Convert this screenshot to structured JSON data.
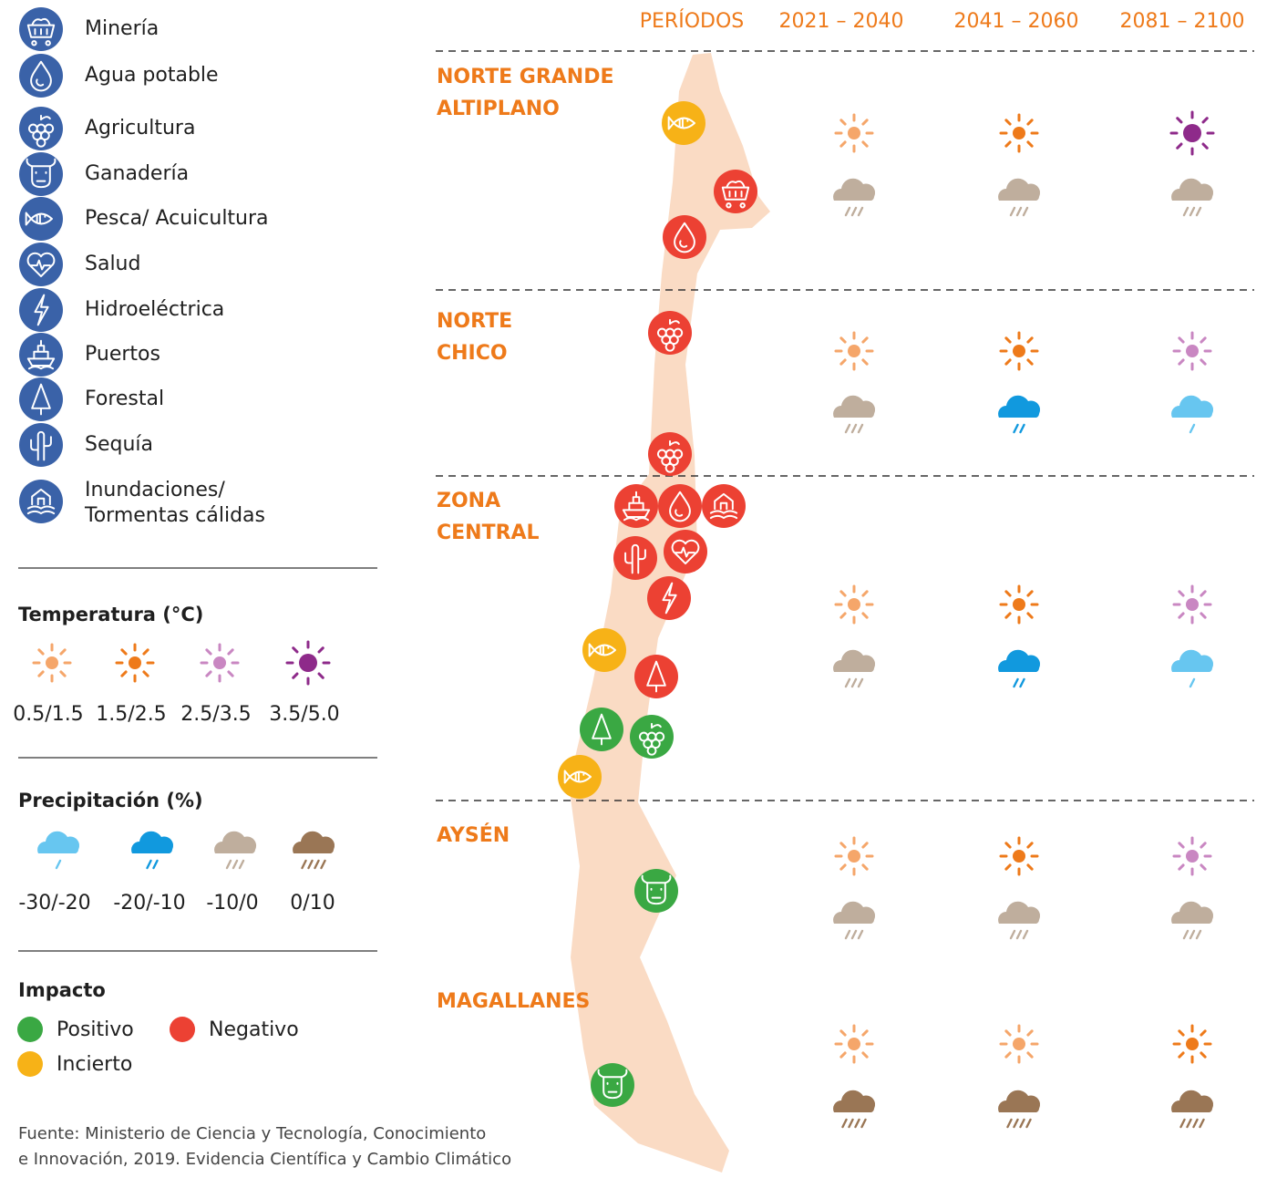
{
  "legend": {
    "sectors": [
      "Minería",
      "Agua potable",
      "Agricultura",
      "Ganadería",
      "Pesca/ Acuicultura",
      "Salud",
      "Hidroeléctrica",
      "Puertos",
      "Forestal",
      "Sequía",
      [
        "Inundaciones/",
        "Tormentas cálidas"
      ]
    ],
    "sector_color": "#3a62a8",
    "temperature": {
      "title": "Temperatura (°C)",
      "levels": [
        "0.5/1.5",
        "1.5/2.5",
        "2.5/3.5",
        "3.5/5.0"
      ],
      "colors": [
        "#f5a66a",
        "#ee7a1a",
        "#c987c2",
        "#8e2a8a"
      ]
    },
    "precipitation": {
      "title": "Precipitación (%)",
      "levels": [
        "-30/-20",
        "-20/-10",
        "-10/0",
        "0/10"
      ],
      "colors": [
        "#67c6f0",
        "#1199de",
        "#bfae9d",
        "#9a7655"
      ]
    },
    "impact": {
      "title": "Impacto",
      "items": [
        "Positivo",
        "Negativo",
        "Incierto"
      ],
      "colors": [
        "#3aa843",
        "#ec4133",
        "#f7b217"
      ]
    }
  },
  "table": {
    "header": "PERÍODOS",
    "periods": [
      "2021 – 2040",
      "2041 – 2060",
      "2081 – 2100"
    ],
    "regions": [
      {
        "name": [
          "NORTE GRANDE",
          "ALTIPLANO"
        ],
        "temperature": [
          "0.5/1.5",
          "1.5/2.5",
          "3.5/5.0"
        ],
        "precipitation": [
          "-10/0",
          "-10/0",
          "-10/0"
        ]
      },
      {
        "name": [
          "NORTE",
          "CHICO"
        ],
        "temperature": [
          "0.5/1.5",
          "1.5/2.5",
          "2.5/3.5"
        ],
        "precipitation": [
          "-10/0",
          "-20/-10",
          "-30/-20"
        ]
      },
      {
        "name": [
          "ZONA",
          "CENTRAL"
        ],
        "temperature": [
          "0.5/1.5",
          "1.5/2.5",
          "2.5/3.5"
        ],
        "precipitation": [
          "-10/0",
          "-20/-10",
          "-30/-20"
        ]
      },
      {
        "name": [
          "AYSÉN"
        ],
        "temperature": [
          "0.5/1.5",
          "1.5/2.5",
          "2.5/3.5"
        ],
        "precipitation": [
          "-10/0",
          "-10/0",
          "-10/0"
        ]
      },
      {
        "name": [
          "MAGALLANES"
        ],
        "temperature": [
          "0.5/1.5",
          "0.5/1.5",
          "1.5/2.5"
        ],
        "precipitation": [
          "0/10",
          "0/10",
          "0/10"
        ]
      }
    ]
  },
  "map_impacts": [
    {
      "sector": "Pesca/ Acuicultura",
      "impact": "Incierto"
    },
    {
      "sector": "Minería",
      "impact": "Negativo"
    },
    {
      "sector": "Agua potable",
      "impact": "Negativo"
    },
    {
      "sector": "Agricultura",
      "impact": "Negativo"
    },
    {
      "sector": "Agricultura",
      "impact": "Negativo"
    },
    {
      "sector": "Puertos",
      "impact": "Negativo"
    },
    {
      "sector": "Agua potable",
      "impact": "Negativo"
    },
    {
      "sector": "Inundaciones/",
      "impact": "Negativo"
    },
    {
      "sector": "Sequía",
      "impact": "Negativo"
    },
    {
      "sector": "Salud",
      "impact": "Negativo"
    },
    {
      "sector": "Hidroeléctrica",
      "impact": "Negativo"
    },
    {
      "sector": "Pesca/ Acuicultura",
      "impact": "Incierto"
    },
    {
      "sector": "Forestal",
      "impact": "Negativo"
    },
    {
      "sector": "Forestal",
      "impact": "Positivo"
    },
    {
      "sector": "Agricultura",
      "impact": "Positivo"
    },
    {
      "sector": "Pesca/ Acuicultura",
      "impact": "Incierto"
    },
    {
      "sector": "Ganadería",
      "impact": "Positivo"
    },
    {
      "sector": "Ganadería",
      "impact": "Positivo"
    }
  ],
  "source": [
    "Fuente: Ministerio de Ciencia y Tecnología, Conocimiento",
    "e Innovación, 2019. Evidencia Científica y Cambio Climático"
  ]
}
